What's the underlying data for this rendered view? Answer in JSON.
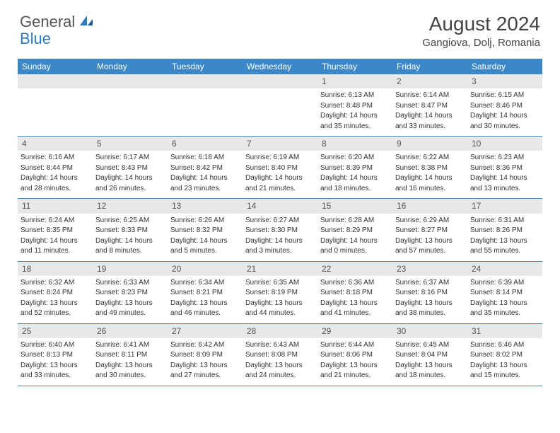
{
  "brand": {
    "part1": "General",
    "part2": "Blue"
  },
  "title": "August 2024",
  "location": "Gangiova, Dolj, Romania",
  "colors": {
    "header_bg": "#3b87c8",
    "header_text": "#ffffff",
    "daynum_bg": "#e8e8e8",
    "text": "#333333",
    "rule": "#3b87c8",
    "brand_gray": "#555555",
    "brand_blue": "#2f7bbf",
    "page_bg": "#ffffff"
  },
  "typography": {
    "title_fontsize": 28,
    "location_fontsize": 15,
    "header_fontsize": 12,
    "daynum_fontsize": 12,
    "body_fontsize": 10
  },
  "weekdays": [
    "Sunday",
    "Monday",
    "Tuesday",
    "Wednesday",
    "Thursday",
    "Friday",
    "Saturday"
  ],
  "weeks": [
    [
      {
        "n": "",
        "sunrise": "",
        "sunset": "",
        "d1": "",
        "d2": ""
      },
      {
        "n": "",
        "sunrise": "",
        "sunset": "",
        "d1": "",
        "d2": ""
      },
      {
        "n": "",
        "sunrise": "",
        "sunset": "",
        "d1": "",
        "d2": ""
      },
      {
        "n": "",
        "sunrise": "",
        "sunset": "",
        "d1": "",
        "d2": ""
      },
      {
        "n": "1",
        "sunrise": "Sunrise: 6:13 AM",
        "sunset": "Sunset: 8:48 PM",
        "d1": "Daylight: 14 hours",
        "d2": "and 35 minutes."
      },
      {
        "n": "2",
        "sunrise": "Sunrise: 6:14 AM",
        "sunset": "Sunset: 8:47 PM",
        "d1": "Daylight: 14 hours",
        "d2": "and 33 minutes."
      },
      {
        "n": "3",
        "sunrise": "Sunrise: 6:15 AM",
        "sunset": "Sunset: 8:46 PM",
        "d1": "Daylight: 14 hours",
        "d2": "and 30 minutes."
      }
    ],
    [
      {
        "n": "4",
        "sunrise": "Sunrise: 6:16 AM",
        "sunset": "Sunset: 8:44 PM",
        "d1": "Daylight: 14 hours",
        "d2": "and 28 minutes."
      },
      {
        "n": "5",
        "sunrise": "Sunrise: 6:17 AM",
        "sunset": "Sunset: 8:43 PM",
        "d1": "Daylight: 14 hours",
        "d2": "and 26 minutes."
      },
      {
        "n": "6",
        "sunrise": "Sunrise: 6:18 AM",
        "sunset": "Sunset: 8:42 PM",
        "d1": "Daylight: 14 hours",
        "d2": "and 23 minutes."
      },
      {
        "n": "7",
        "sunrise": "Sunrise: 6:19 AM",
        "sunset": "Sunset: 8:40 PM",
        "d1": "Daylight: 14 hours",
        "d2": "and 21 minutes."
      },
      {
        "n": "8",
        "sunrise": "Sunrise: 6:20 AM",
        "sunset": "Sunset: 8:39 PM",
        "d1": "Daylight: 14 hours",
        "d2": "and 18 minutes."
      },
      {
        "n": "9",
        "sunrise": "Sunrise: 6:22 AM",
        "sunset": "Sunset: 8:38 PM",
        "d1": "Daylight: 14 hours",
        "d2": "and 16 minutes."
      },
      {
        "n": "10",
        "sunrise": "Sunrise: 6:23 AM",
        "sunset": "Sunset: 8:36 PM",
        "d1": "Daylight: 14 hours",
        "d2": "and 13 minutes."
      }
    ],
    [
      {
        "n": "11",
        "sunrise": "Sunrise: 6:24 AM",
        "sunset": "Sunset: 8:35 PM",
        "d1": "Daylight: 14 hours",
        "d2": "and 11 minutes."
      },
      {
        "n": "12",
        "sunrise": "Sunrise: 6:25 AM",
        "sunset": "Sunset: 8:33 PM",
        "d1": "Daylight: 14 hours",
        "d2": "and 8 minutes."
      },
      {
        "n": "13",
        "sunrise": "Sunrise: 6:26 AM",
        "sunset": "Sunset: 8:32 PM",
        "d1": "Daylight: 14 hours",
        "d2": "and 5 minutes."
      },
      {
        "n": "14",
        "sunrise": "Sunrise: 6:27 AM",
        "sunset": "Sunset: 8:30 PM",
        "d1": "Daylight: 14 hours",
        "d2": "and 3 minutes."
      },
      {
        "n": "15",
        "sunrise": "Sunrise: 6:28 AM",
        "sunset": "Sunset: 8:29 PM",
        "d1": "Daylight: 14 hours",
        "d2": "and 0 minutes."
      },
      {
        "n": "16",
        "sunrise": "Sunrise: 6:29 AM",
        "sunset": "Sunset: 8:27 PM",
        "d1": "Daylight: 13 hours",
        "d2": "and 57 minutes."
      },
      {
        "n": "17",
        "sunrise": "Sunrise: 6:31 AM",
        "sunset": "Sunset: 8:26 PM",
        "d1": "Daylight: 13 hours",
        "d2": "and 55 minutes."
      }
    ],
    [
      {
        "n": "18",
        "sunrise": "Sunrise: 6:32 AM",
        "sunset": "Sunset: 8:24 PM",
        "d1": "Daylight: 13 hours",
        "d2": "and 52 minutes."
      },
      {
        "n": "19",
        "sunrise": "Sunrise: 6:33 AM",
        "sunset": "Sunset: 8:23 PM",
        "d1": "Daylight: 13 hours",
        "d2": "and 49 minutes."
      },
      {
        "n": "20",
        "sunrise": "Sunrise: 6:34 AM",
        "sunset": "Sunset: 8:21 PM",
        "d1": "Daylight: 13 hours",
        "d2": "and 46 minutes."
      },
      {
        "n": "21",
        "sunrise": "Sunrise: 6:35 AM",
        "sunset": "Sunset: 8:19 PM",
        "d1": "Daylight: 13 hours",
        "d2": "and 44 minutes."
      },
      {
        "n": "22",
        "sunrise": "Sunrise: 6:36 AM",
        "sunset": "Sunset: 8:18 PM",
        "d1": "Daylight: 13 hours",
        "d2": "and 41 minutes."
      },
      {
        "n": "23",
        "sunrise": "Sunrise: 6:37 AM",
        "sunset": "Sunset: 8:16 PM",
        "d1": "Daylight: 13 hours",
        "d2": "and 38 minutes."
      },
      {
        "n": "24",
        "sunrise": "Sunrise: 6:39 AM",
        "sunset": "Sunset: 8:14 PM",
        "d1": "Daylight: 13 hours",
        "d2": "and 35 minutes."
      }
    ],
    [
      {
        "n": "25",
        "sunrise": "Sunrise: 6:40 AM",
        "sunset": "Sunset: 8:13 PM",
        "d1": "Daylight: 13 hours",
        "d2": "and 33 minutes."
      },
      {
        "n": "26",
        "sunrise": "Sunrise: 6:41 AM",
        "sunset": "Sunset: 8:11 PM",
        "d1": "Daylight: 13 hours",
        "d2": "and 30 minutes."
      },
      {
        "n": "27",
        "sunrise": "Sunrise: 6:42 AM",
        "sunset": "Sunset: 8:09 PM",
        "d1": "Daylight: 13 hours",
        "d2": "and 27 minutes."
      },
      {
        "n": "28",
        "sunrise": "Sunrise: 6:43 AM",
        "sunset": "Sunset: 8:08 PM",
        "d1": "Daylight: 13 hours",
        "d2": "and 24 minutes."
      },
      {
        "n": "29",
        "sunrise": "Sunrise: 6:44 AM",
        "sunset": "Sunset: 8:06 PM",
        "d1": "Daylight: 13 hours",
        "d2": "and 21 minutes."
      },
      {
        "n": "30",
        "sunrise": "Sunrise: 6:45 AM",
        "sunset": "Sunset: 8:04 PM",
        "d1": "Daylight: 13 hours",
        "d2": "and 18 minutes."
      },
      {
        "n": "31",
        "sunrise": "Sunrise: 6:46 AM",
        "sunset": "Sunset: 8:02 PM",
        "d1": "Daylight: 13 hours",
        "d2": "and 15 minutes."
      }
    ]
  ]
}
